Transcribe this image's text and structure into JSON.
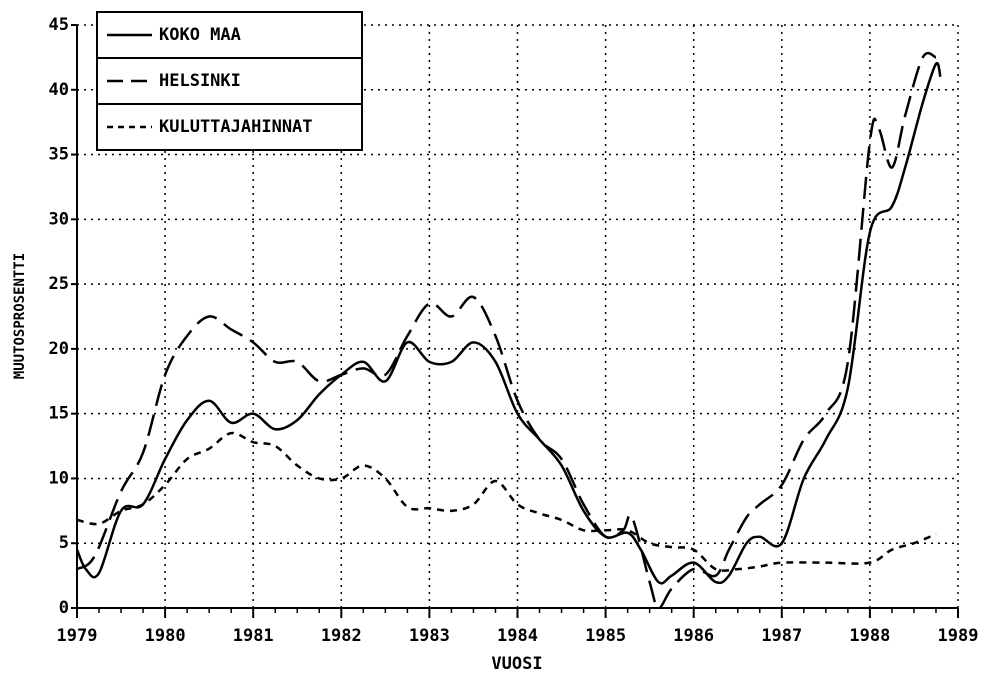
{
  "chart_data": {
    "type": "line",
    "xlabel": "VUOSI",
    "ylabel": "MUUTOSPROSENTTI",
    "xlim": [
      1979,
      1989
    ],
    "xticks": [
      1979,
      1980,
      1981,
      1982,
      1983,
      1984,
      1985,
      1986,
      1987,
      1988,
      1989
    ],
    "ylim": [
      0,
      45
    ],
    "yticks": [
      0,
      5,
      10,
      15,
      20,
      25,
      30,
      35,
      40,
      45
    ],
    "grid": true,
    "legend": "upper left",
    "series": [
      {
        "name": "KOKO MAA",
        "color": "#000000",
        "line_style": "solid",
        "x": [
          1979.0,
          1979.1,
          1979.25,
          1979.5,
          1979.75,
          1980.0,
          1980.25,
          1980.5,
          1980.75,
          1981.0,
          1981.25,
          1981.5,
          1981.75,
          1982.0,
          1982.25,
          1982.5,
          1982.75,
          1983.0,
          1983.25,
          1983.5,
          1983.75,
          1984.0,
          1984.25,
          1984.5,
          1984.75,
          1985.0,
          1985.25,
          1985.4,
          1985.6,
          1985.75,
          1986.0,
          1986.25,
          1986.4,
          1986.6,
          1986.75,
          1987.0,
          1987.25,
          1987.5,
          1987.75,
          1988.0,
          1988.25,
          1988.4,
          1988.6,
          1988.75,
          1988.8
        ],
        "values": [
          4.5,
          3,
          2.7,
          7.5,
          8,
          11.5,
          14.5,
          16,
          14.3,
          15,
          13.8,
          14.5,
          16.5,
          18,
          19,
          17.5,
          20.5,
          19,
          19,
          20.5,
          19,
          15,
          13,
          11,
          7.5,
          5.5,
          5.8,
          4.5,
          2,
          2.5,
          3.5,
          2,
          2.5,
          5,
          5.5,
          5,
          10,
          13,
          17,
          29,
          31,
          34,
          39,
          42,
          41
        ]
      },
      {
        "name": "HELSINKI",
        "color": "#000000",
        "line_style": "dashed",
        "x": [
          1979.0,
          1979.2,
          1979.5,
          1979.75,
          1980.0,
          1980.25,
          1980.5,
          1980.75,
          1981.0,
          1981.25,
          1981.5,
          1981.75,
          1982.0,
          1982.25,
          1982.5,
          1982.75,
          1983.0,
          1983.25,
          1983.5,
          1983.75,
          1984.0,
          1984.25,
          1984.5,
          1984.75,
          1985.0,
          1985.2,
          1985.3,
          1985.5,
          1985.6,
          1985.75,
          1986.0,
          1986.25,
          1986.4,
          1986.6,
          1986.75,
          1987.0,
          1987.25,
          1987.5,
          1987.75,
          1988.0,
          1988.1,
          1988.25,
          1988.4,
          1988.6,
          1988.75
        ],
        "values": [
          3,
          4,
          9,
          12,
          18,
          21,
          22.5,
          21.5,
          20.5,
          19,
          19,
          17.5,
          18,
          18.5,
          18,
          21,
          23.5,
          22.5,
          24,
          21,
          16,
          13,
          11.5,
          8,
          5.5,
          6,
          7,
          2,
          0,
          1.5,
          3,
          2.5,
          4.5,
          7,
          8,
          9.5,
          13,
          15,
          19,
          36,
          37,
          34,
          38,
          42.5,
          42.5
        ]
      },
      {
        "name": "KULUTTAJAHINNAT",
        "color": "#000000",
        "line_style": "dotted",
        "x": [
          1979.0,
          1979.25,
          1979.5,
          1979.75,
          1980.0,
          1980.25,
          1980.5,
          1980.75,
          1981.0,
          1981.25,
          1981.5,
          1981.75,
          1982.0,
          1982.25,
          1982.5,
          1982.75,
          1983.0,
          1983.25,
          1983.5,
          1983.75,
          1984.0,
          1984.25,
          1984.5,
          1984.75,
          1985.0,
          1985.25,
          1985.5,
          1985.75,
          1986.0,
          1986.25,
          1986.5,
          1986.75,
          1987.0,
          1987.5,
          1988.0,
          1988.25,
          1988.5,
          1988.75
        ],
        "values": [
          6.8,
          6.5,
          7.5,
          8,
          9.5,
          11.5,
          12.3,
          13.5,
          12.8,
          12.5,
          11,
          10,
          10,
          11,
          10,
          7.8,
          7.7,
          7.5,
          8,
          9.8,
          8,
          7.3,
          6.8,
          6,
          6,
          6,
          5,
          4.7,
          4.5,
          3,
          3,
          3.2,
          3.5,
          3.5,
          3.5,
          4.5,
          5,
          5.7
        ]
      }
    ]
  }
}
